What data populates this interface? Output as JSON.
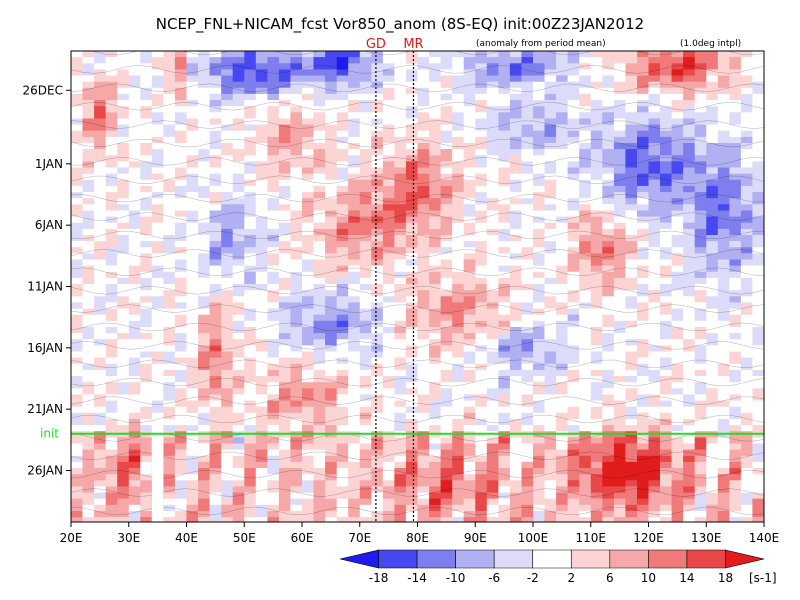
{
  "chart_data": {
    "type": "heatmap",
    "title": "NCEP_FNL+NICAM_fcst Vor850_anom (8S-EQ) init:00Z23JAN2012",
    "subtitle_left": "(anomaly from period mean)",
    "subtitle_right": "(1.0deg intpl)",
    "x_ticks": [
      {
        "label": "20E",
        "lon": 20
      },
      {
        "label": "30E",
        "lon": 30
      },
      {
        "label": "40E",
        "lon": 40
      },
      {
        "label": "50E",
        "lon": 50
      },
      {
        "label": "60E",
        "lon": 60
      },
      {
        "label": "70E",
        "lon": 70
      },
      {
        "label": "80E",
        "lon": 80
      },
      {
        "label": "90E",
        "lon": 90
      },
      {
        "label": "100E",
        "lon": 100
      },
      {
        "label": "110E",
        "lon": 110
      },
      {
        "label": "120E",
        "lon": 120
      },
      {
        "label": "130E",
        "lon": 130
      },
      {
        "label": "140E",
        "lon": 140
      }
    ],
    "xlim": [
      20,
      140
    ],
    "y_ticks": [
      {
        "label": "26DEC",
        "day": 0
      },
      {
        "label": "1JAN",
        "day": 6
      },
      {
        "label": "6JAN",
        "day": 11
      },
      {
        "label": "11JAN",
        "day": 16
      },
      {
        "label": "16JAN",
        "day": 21
      },
      {
        "label": "21JAN",
        "day": 26
      },
      {
        "label": "26JAN",
        "day": 31
      }
    ],
    "ylim_days": [
      -3.2,
      35.2
    ],
    "init": {
      "label": "init",
      "day": 28
    },
    "markers": [
      {
        "label": "GD",
        "lon": 72.8
      },
      {
        "label": "MR",
        "lon": 79.3
      }
    ],
    "missing_band_lon": [
      34.0,
      36.0
    ],
    "colorbar": {
      "levels": [
        "-18",
        "-14",
        "-10",
        "-6",
        "-2",
        "2",
        "6",
        "10",
        "14",
        "18"
      ],
      "colors": [
        "#1c1cf0",
        "#4848f0",
        "#7e7eee",
        "#b0b0f2",
        "#dcdcfa",
        "#ffffff",
        "#fcd4d4",
        "#f6a8a8",
        "#f07a7a",
        "#e84848",
        "#e01c1c"
      ],
      "unit": "[s-1]"
    },
    "features": [
      {
        "lon": 52,
        "day": -1.5,
        "value": -17,
        "slon": 9,
        "sday": 2
      },
      {
        "lon": 67,
        "day": -2.2,
        "value": -15,
        "slon": 6,
        "sday": 1.8
      },
      {
        "lon": 97,
        "day": -2,
        "value": -12,
        "slon": 9,
        "sday": 1.8
      },
      {
        "lon": 125,
        "day": -2,
        "value": 16,
        "slon": 9,
        "sday": 2.2
      },
      {
        "lon": 38.5,
        "day": -1.3,
        "value": 15,
        "slon": 1.4,
        "sday": 2.2
      },
      {
        "lon": 25,
        "day": 2,
        "value": 12,
        "slon": 3,
        "sday": 3
      },
      {
        "lon": 58,
        "day": 4,
        "value": 8,
        "slon": 6,
        "sday": 3
      },
      {
        "lon": 80,
        "day": 8,
        "value": 13,
        "slon": 7,
        "sday": 3.5
      },
      {
        "lon": 70,
        "day": 11,
        "value": 11,
        "slon": 8,
        "sday": 3
      },
      {
        "lon": 48,
        "day": 12,
        "value": -9,
        "slon": 5,
        "sday": 3
      },
      {
        "lon": 120,
        "day": 6,
        "value": -14,
        "slon": 9,
        "sday": 4
      },
      {
        "lon": 133,
        "day": 10,
        "value": -13,
        "slon": 6,
        "sday": 5
      },
      {
        "lon": 112,
        "day": 13,
        "value": 12,
        "slon": 5,
        "sday": 3
      },
      {
        "lon": 87,
        "day": 18,
        "value": 10,
        "slon": 9,
        "sday": 3
      },
      {
        "lon": 65,
        "day": 19,
        "value": -11,
        "slon": 8,
        "sday": 2.5
      },
      {
        "lon": 60,
        "day": 25,
        "value": 9,
        "slon": 8,
        "sday": 3
      },
      {
        "lon": 45,
        "day": 22,
        "value": 12,
        "slon": 3,
        "sday": 4
      },
      {
        "lon": 98,
        "day": 21,
        "value": -10,
        "slon": 7,
        "sday": 2
      },
      {
        "lon": 100,
        "day": 3,
        "value": -8,
        "slon": 8,
        "sday": 2
      },
      {
        "lon": 116,
        "day": 31,
        "value": 17,
        "slon": 9,
        "sday": 3
      },
      {
        "lon": 85,
        "day": 32,
        "value": 8,
        "slon": 10,
        "sday": 3
      },
      {
        "lon": 30,
        "day": 31,
        "value": 8,
        "slon": 4,
        "sday": 3
      }
    ]
  }
}
